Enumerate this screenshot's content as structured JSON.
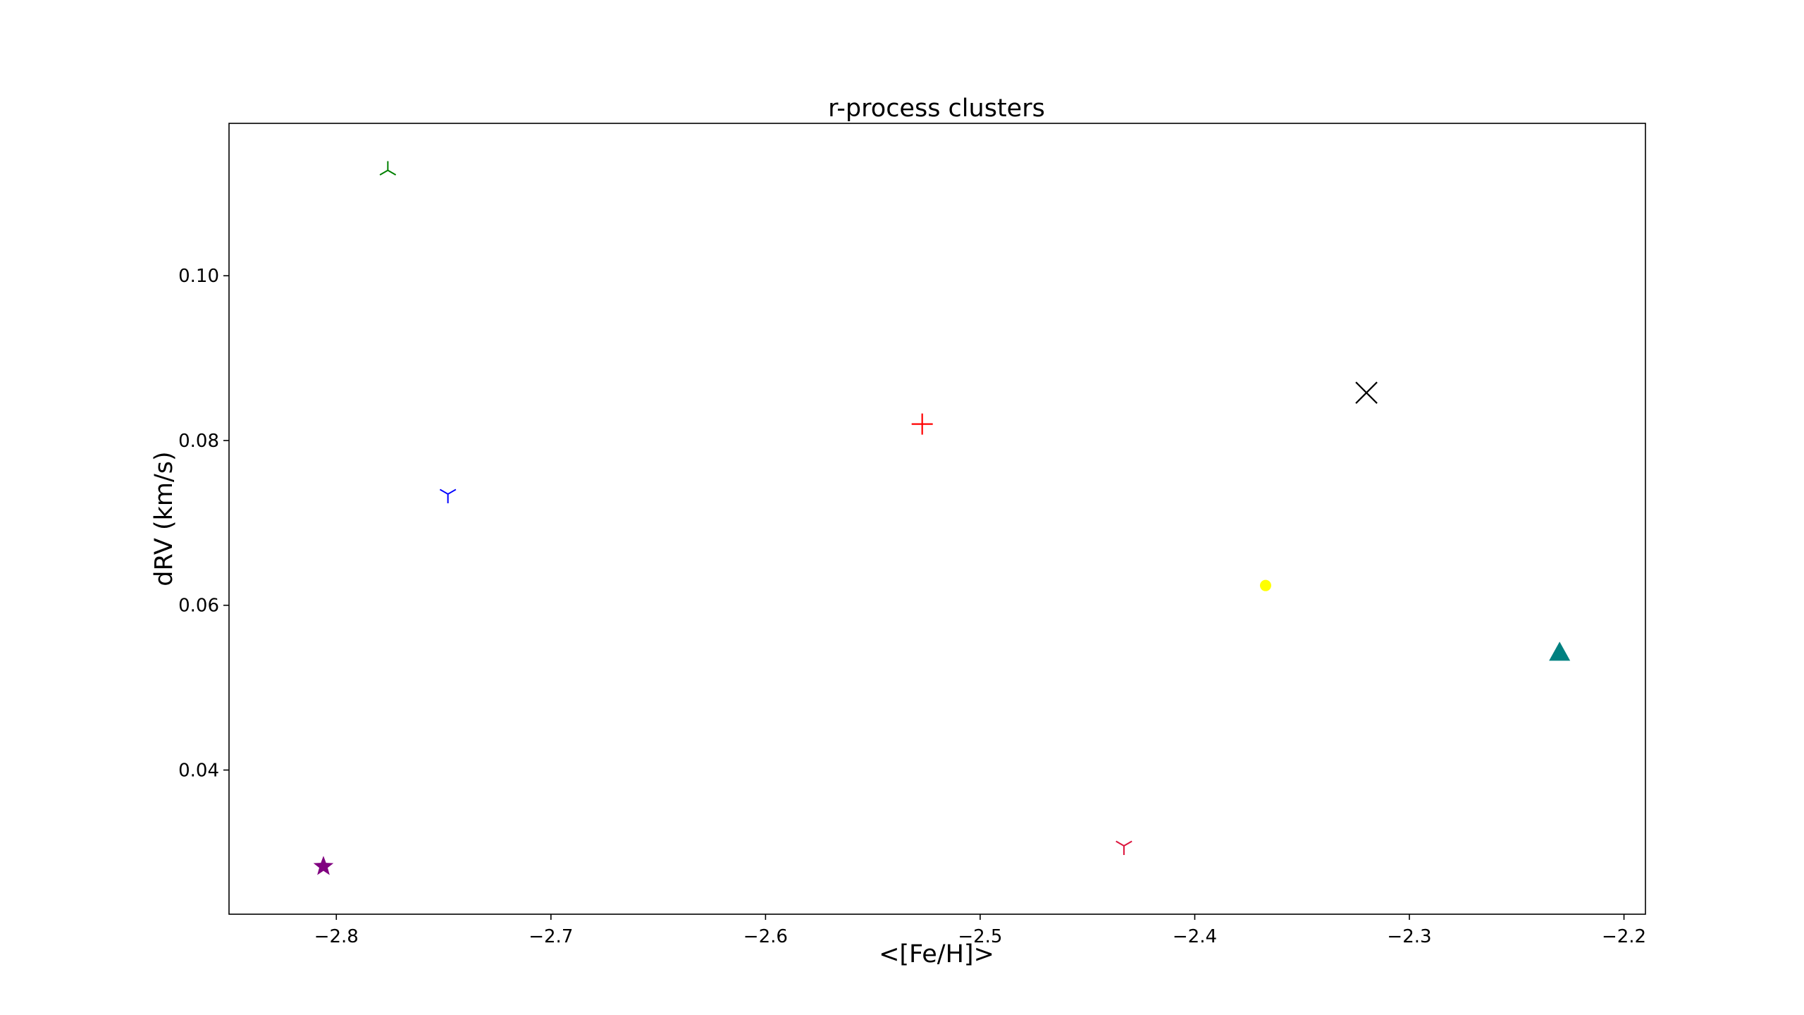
{
  "chart_data": {
    "type": "scatter",
    "title": "r-process clusters",
    "xlabel": "<[Fe/H]>",
    "ylabel": "dRV (km/s)",
    "xlim": [
      -2.85,
      -2.19
    ],
    "ylim": [
      0.0225,
      0.1185
    ],
    "grid": false,
    "xticks": [
      {
        "value": -2.8,
        "label": "−2.8"
      },
      {
        "value": -2.7,
        "label": "−2.7"
      },
      {
        "value": -2.6,
        "label": "−2.6"
      },
      {
        "value": -2.5,
        "label": "−2.5"
      },
      {
        "value": -2.4,
        "label": "−2.4"
      },
      {
        "value": -2.3,
        "label": "−2.3"
      },
      {
        "value": -2.2,
        "label": "−2.2"
      }
    ],
    "yticks": [
      {
        "value": 0.04,
        "label": "0.04"
      },
      {
        "value": 0.06,
        "label": "0.06"
      },
      {
        "value": 0.08,
        "label": "0.08"
      },
      {
        "value": 0.1,
        "label": "0.10"
      }
    ],
    "points": [
      {
        "x": -2.806,
        "y": 0.0283,
        "marker": "star",
        "color": "#800080"
      },
      {
        "x": -2.776,
        "y": 0.1128,
        "marker": "tri_up",
        "color": "#008000"
      },
      {
        "x": -2.748,
        "y": 0.0735,
        "marker": "tri_down",
        "color": "#0000ff"
      },
      {
        "x": -2.527,
        "y": 0.082,
        "marker": "plus",
        "color": "#ff0000"
      },
      {
        "x": -2.433,
        "y": 0.0308,
        "marker": "tri_down",
        "color": "#dc143c"
      },
      {
        "x": -2.367,
        "y": 0.0624,
        "marker": "circle",
        "color": "#ffff00"
      },
      {
        "x": -2.32,
        "y": 0.0858,
        "marker": "x",
        "color": "#000000"
      },
      {
        "x": -2.23,
        "y": 0.0543,
        "marker": "triangle",
        "color": "#008080"
      }
    ]
  }
}
